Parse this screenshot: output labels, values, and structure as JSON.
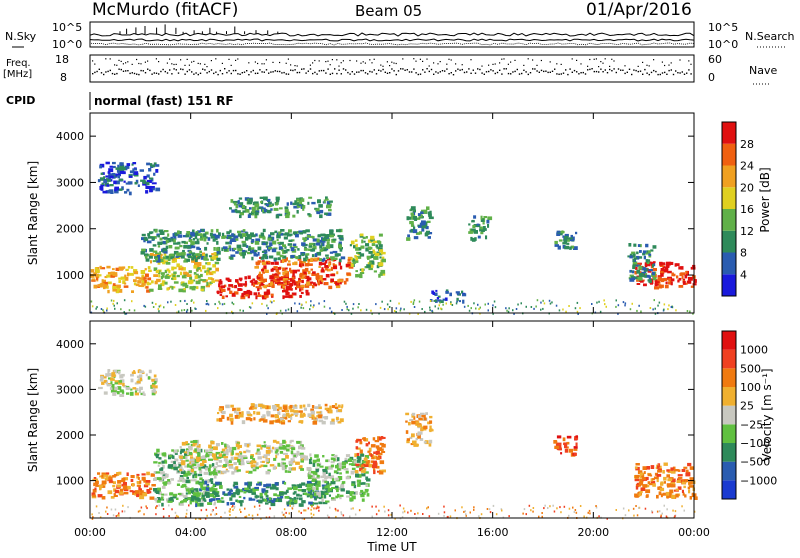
{
  "header": {
    "station": "McMurdo (fitACF)",
    "beam": "Beam 05",
    "date": "01/Apr/2016"
  },
  "status_panels": {
    "nsky_label": "N.Sky",
    "nsky_ticks": [
      "10^5",
      "10^0"
    ],
    "nsearch_label": "N.Search",
    "nsearch_ticks": [
      "10^5",
      "10^0"
    ],
    "freq_label": "Freq.",
    "freq_unit": "[MHz]",
    "freq_ticks": [
      "18",
      "8"
    ],
    "nave_label": "Nave",
    "nave_ticks": [
      "60",
      "0"
    ],
    "cpid_label": "CPID",
    "cpid_text": "normal (fast) 151 RF"
  },
  "colors": {
    "power": [
      "#1a1adc",
      "#2a5cb0",
      "#2e8a5a",
      "#60b048",
      "#e0d020",
      "#f0a020",
      "#f06010",
      "#e01010"
    ],
    "velocity": [
      "#e01010",
      "#f04020",
      "#f07a10",
      "#f0b030",
      "#c8c8c0",
      "#60c040",
      "#2e8a5a",
      "#2a5cb0",
      "#1a3ad0"
    ]
  },
  "chart_data": [
    {
      "type": "heatmap",
      "name": "power",
      "ylabel": "Slant Range [km]",
      "xlim": [
        0,
        24
      ],
      "ylim": [
        180,
        4500
      ],
      "y_ticks": [
        "1000",
        "2000",
        "3000",
        "4000"
      ],
      "colorbar_label": "Power [dB]",
      "colorbar_ticks": [
        "4",
        "8",
        "12",
        "16",
        "20",
        "24",
        "28"
      ],
      "colorbar_range": [
        0,
        32
      ],
      "patches": [
        {
          "t0": 0.0,
          "t1": 2.3,
          "r0": 650,
          "r1": 1200,
          "level": 5
        },
        {
          "t0": 2.3,
          "t1": 5.0,
          "r0": 700,
          "r1": 1500,
          "level": 4
        },
        {
          "t0": 5.0,
          "t1": 8.6,
          "r0": 550,
          "r1": 1000,
          "level": 7
        },
        {
          "t0": 6.5,
          "t1": 10.3,
          "r0": 750,
          "r1": 1400,
          "level": 6
        },
        {
          "t0": 10.3,
          "t1": 11.6,
          "r0": 1000,
          "r1": 1900,
          "level": 3
        },
        {
          "t0": 21.6,
          "t1": 24.0,
          "r0": 750,
          "r1": 1300,
          "level": 7
        },
        {
          "t0": 21.3,
          "t1": 22.4,
          "r0": 900,
          "r1": 1700,
          "level": 2
        },
        {
          "t0": 0.3,
          "t1": 2.6,
          "r0": 2800,
          "r1": 3450,
          "level": 1
        },
        {
          "t0": 2.0,
          "t1": 10.0,
          "r0": 1350,
          "r1": 2000,
          "level": 2
        },
        {
          "t0": 5.5,
          "t1": 9.5,
          "r0": 2300,
          "r1": 2700,
          "level": 2
        },
        {
          "t0": 12.5,
          "t1": 13.5,
          "r0": 1800,
          "r1": 2500,
          "level": 2
        },
        {
          "t0": 15.0,
          "t1": 15.8,
          "r0": 1800,
          "r1": 2300,
          "level": 2
        },
        {
          "t0": 18.4,
          "t1": 19.3,
          "r0": 1600,
          "r1": 2000,
          "level": 2
        },
        {
          "t0": 13.5,
          "t1": 14.8,
          "r0": 450,
          "r1": 700,
          "level": 1
        }
      ]
    },
    {
      "type": "heatmap",
      "name": "velocity",
      "ylabel": "Slant Range [km]",
      "xlabel": "Time UT",
      "xlim": [
        0,
        24
      ],
      "ylim": [
        180,
        4500
      ],
      "x_ticks": [
        "00:00",
        "04:00",
        "08:00",
        "12:00",
        "16:00",
        "20:00",
        "00:00"
      ],
      "y_ticks": [
        "1000",
        "2000",
        "3000",
        "4000"
      ],
      "colorbar_label": "Velocity [m s⁻¹]",
      "colorbar_ticks": [
        "1000",
        "500",
        "100",
        "25",
        "−25",
        "−100",
        "−500",
        "−1000"
      ],
      "patches": [
        {
          "t0": 0.0,
          "t1": 2.5,
          "r0": 650,
          "r1": 1200,
          "level": 2
        },
        {
          "t0": 2.5,
          "t1": 5.0,
          "r0": 500,
          "r1": 1700,
          "level": 5
        },
        {
          "t0": 3.5,
          "t1": 8.5,
          "r0": 1200,
          "r1": 1900,
          "level": 4
        },
        {
          "t0": 4.0,
          "t1": 9.5,
          "r0": 500,
          "r1": 1000,
          "level": 6
        },
        {
          "t0": 8.5,
          "t1": 11.0,
          "r0": 600,
          "r1": 1600,
          "level": 5
        },
        {
          "t0": 10.5,
          "t1": 11.6,
          "r0": 1200,
          "r1": 2000,
          "level": 2
        },
        {
          "t0": 21.6,
          "t1": 24.0,
          "r0": 650,
          "r1": 1400,
          "level": 2
        },
        {
          "t0": 0.3,
          "t1": 2.6,
          "r0": 2900,
          "r1": 3450,
          "level": 4
        },
        {
          "t0": 5.0,
          "t1": 10.0,
          "r0": 2300,
          "r1": 2700,
          "level": 3
        },
        {
          "t0": 12.5,
          "t1": 13.5,
          "r0": 1800,
          "r1": 2500,
          "level": 3
        },
        {
          "t0": 18.4,
          "t1": 19.3,
          "r0": 1600,
          "r1": 2000,
          "level": 1
        }
      ]
    }
  ]
}
